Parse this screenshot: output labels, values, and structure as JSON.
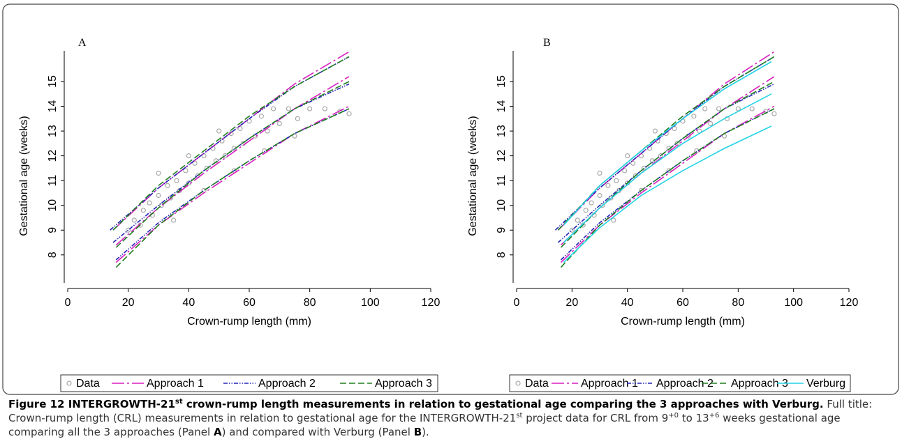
{
  "chart_data": [
    {
      "type": "scatter-line",
      "panel": "A",
      "x_label": "Crown-rump length (mm)",
      "y_label": "Gestational age (weeks)",
      "xlim": [
        0,
        120
      ],
      "xticks": [
        0,
        20,
        40,
        60,
        80,
        100,
        120
      ],
      "ylim": [
        6.7,
        16.8
      ],
      "yticks": [
        8,
        9,
        10,
        11,
        12,
        13,
        14,
        15
      ],
      "series": [
        {
          "name": "Data",
          "color": "#a8a8a8",
          "marker": "circle",
          "x": [
            20,
            22,
            24,
            25,
            27,
            28,
            30,
            31,
            33,
            34,
            36,
            37,
            39,
            40,
            42,
            43,
            45,
            46,
            48,
            49,
            51,
            52,
            54,
            55,
            57,
            58,
            60,
            62,
            64,
            66,
            68,
            70,
            73,
            76,
            80,
            85,
            90,
            93,
            35,
            45,
            55,
            65,
            75,
            30,
            40,
            50
          ],
          "values": [
            9.0,
            9.4,
            9.2,
            9.8,
            10.1,
            9.6,
            10.4,
            10.0,
            10.8,
            10.3,
            11.0,
            10.6,
            11.4,
            10.9,
            11.7,
            11.2,
            12.0,
            11.5,
            12.3,
            11.8,
            12.6,
            12.0,
            12.9,
            12.3,
            13.1,
            12.5,
            13.4,
            12.8,
            13.6,
            13.0,
            13.9,
            13.3,
            13.9,
            13.5,
            13.9,
            13.9,
            13.8,
            13.7,
            9.4,
            10.6,
            11.4,
            12.2,
            12.8,
            11.3,
            12.0,
            13.0
          ]
        },
        {
          "name": "Approach 1",
          "color": "#d81fc0",
          "dash": "18 4 3 4",
          "lines": [
            {
              "x": [
                16,
                30,
                45,
                60,
                75,
                93
              ],
              "values": [
                7.7,
                9.2,
                10.5,
                11.7,
                12.9,
                14.0
              ]
            },
            {
              "x": [
                16,
                30,
                45,
                60,
                75,
                93
              ],
              "values": [
                8.4,
                9.9,
                11.3,
                12.6,
                13.9,
                15.2
              ]
            },
            {
              "x": [
                15,
                30,
                45,
                60,
                75,
                93
              ],
              "values": [
                9.0,
                10.7,
                12.1,
                13.5,
                14.9,
                16.2
              ]
            }
          ]
        },
        {
          "name": "Approach 2",
          "color": "#2424b8",
          "dash": "6 2 1.5 2 1.5 2",
          "lines": [
            {
              "x": [
                16,
                30,
                45,
                60,
                75,
                93
              ],
              "values": [
                7.8,
                9.3,
                10.6,
                11.8,
                12.9,
                13.9
              ]
            },
            {
              "x": [
                15,
                30,
                45,
                60,
                75,
                93
              ],
              "values": [
                8.5,
                10.0,
                11.4,
                12.7,
                13.9,
                14.9
              ]
            },
            {
              "x": [
                14,
                30,
                45,
                60,
                75,
                93
              ],
              "values": [
                9.0,
                10.7,
                12.1,
                13.5,
                14.8,
                16.0
              ]
            }
          ]
        },
        {
          "name": "Approach 3",
          "color": "#1f7f1f",
          "dash": "9 4",
          "lines": [
            {
              "x": [
                16,
                30,
                45,
                60,
                75,
                93
              ],
              "values": [
                7.5,
                9.2,
                10.6,
                11.8,
                12.9,
                13.9
              ]
            },
            {
              "x": [
                16,
                30,
                45,
                60,
                75,
                93
              ],
              "values": [
                8.3,
                9.9,
                11.4,
                12.7,
                13.9,
                15.0
              ]
            },
            {
              "x": [
                15,
                30,
                45,
                60,
                75,
                93
              ],
              "values": [
                9.0,
                10.8,
                12.2,
                13.6,
                14.8,
                16.0
              ]
            }
          ]
        }
      ]
    },
    {
      "type": "scatter-line",
      "panel": "B",
      "x_label": "Crown-rump length (mm)",
      "y_label": "Gestational age (weeks)",
      "xlim": [
        0,
        120
      ],
      "xticks": [
        0,
        20,
        40,
        60,
        80,
        100,
        120
      ],
      "ylim": [
        6.7,
        16.8
      ],
      "yticks": [
        8,
        9,
        10,
        11,
        12,
        13,
        14,
        15
      ],
      "series": [
        {
          "name": "Data",
          "color": "#a8a8a8",
          "marker": "circle",
          "x": [
            20,
            22,
            24,
            25,
            27,
            28,
            30,
            31,
            33,
            34,
            36,
            37,
            39,
            40,
            42,
            43,
            45,
            46,
            48,
            49,
            51,
            52,
            54,
            55,
            57,
            58,
            60,
            62,
            64,
            66,
            68,
            70,
            73,
            76,
            80,
            85,
            90,
            93,
            35,
            45,
            55,
            65,
            75,
            30,
            40,
            50
          ],
          "values": [
            9.0,
            9.4,
            9.2,
            9.8,
            10.1,
            9.6,
            10.4,
            10.0,
            10.8,
            10.3,
            11.0,
            10.6,
            11.4,
            10.9,
            11.7,
            11.2,
            12.0,
            11.5,
            12.3,
            11.8,
            12.6,
            12.0,
            12.9,
            12.3,
            13.1,
            12.5,
            13.4,
            12.8,
            13.6,
            13.0,
            13.9,
            13.3,
            13.9,
            13.5,
            13.9,
            13.9,
            13.8,
            13.7,
            9.4,
            10.6,
            11.4,
            12.2,
            12.8,
            11.3,
            12.0,
            13.0
          ]
        },
        {
          "name": "Approach 1",
          "color": "#d81fc0",
          "dash": "18 4 3 4",
          "lines": [
            {
              "x": [
                16,
                30,
                45,
                60,
                75,
                93
              ],
              "values": [
                7.7,
                9.2,
                10.5,
                11.7,
                12.9,
                14.0
              ]
            },
            {
              "x": [
                16,
                30,
                45,
                60,
                75,
                93
              ],
              "values": [
                8.4,
                9.9,
                11.3,
                12.6,
                13.9,
                15.2
              ]
            },
            {
              "x": [
                15,
                30,
                45,
                60,
                75,
                93
              ],
              "values": [
                9.0,
                10.7,
                12.1,
                13.5,
                14.9,
                16.2
              ]
            }
          ]
        },
        {
          "name": "Approach 2",
          "color": "#2424b8",
          "dash": "6 2 1.5 2 1.5 2",
          "lines": [
            {
              "x": [
                16,
                30,
                45,
                60,
                75,
                93
              ],
              "values": [
                7.8,
                9.3,
                10.6,
                11.8,
                12.9,
                13.9
              ]
            },
            {
              "x": [
                15,
                30,
                45,
                60,
                75,
                93
              ],
              "values": [
                8.5,
                10.0,
                11.4,
                12.7,
                13.9,
                14.9
              ]
            },
            {
              "x": [
                14,
                30,
                45,
                60,
                75,
                93
              ],
              "values": [
                9.0,
                10.7,
                12.1,
                13.5,
                14.8,
                16.0
              ]
            }
          ]
        },
        {
          "name": "Approach 3",
          "color": "#1f7f1f",
          "dash": "9 4",
          "lines": [
            {
              "x": [
                16,
                30,
                45,
                60,
                75,
                93
              ],
              "values": [
                7.5,
                9.2,
                10.6,
                11.8,
                12.9,
                13.9
              ]
            },
            {
              "x": [
                16,
                30,
                45,
                60,
                75,
                93
              ],
              "values": [
                8.3,
                9.9,
                11.4,
                12.7,
                13.9,
                15.0
              ]
            },
            {
              "x": [
                15,
                30,
                45,
                60,
                75,
                93
              ],
              "values": [
                9.0,
                10.8,
                12.2,
                13.6,
                14.8,
                16.0
              ]
            }
          ]
        },
        {
          "name": "Verburg",
          "color": "#22d3e3",
          "dash": "none",
          "lines": [
            {
              "x": [
                17,
                30,
                45,
                60,
                75,
                92
              ],
              "values": [
                7.7,
                9.1,
                10.4,
                11.4,
                12.3,
                13.2
              ]
            },
            {
              "x": [
                17,
                30,
                45,
                60,
                75,
                92
              ],
              "values": [
                8.5,
                9.9,
                11.3,
                12.5,
                13.5,
                14.5
              ]
            },
            {
              "x": [
                17,
                30,
                45,
                60,
                75,
                92
              ],
              "values": [
                9.2,
                10.8,
                12.2,
                13.5,
                14.7,
                15.8
              ]
            }
          ]
        }
      ]
    }
  ],
  "caption": {
    "segments": [
      {
        "text": "Figure 12 INTERGROWTH-21",
        "bold": true
      },
      {
        "text": "st",
        "bold": true,
        "sup": true
      },
      {
        "text": " crown-rump length measurements in relation to gestational age comparing the 3 approaches with Verburg.",
        "bold": true
      },
      {
        "text": " Full title: Crown-rump length (CRL) measurements in relation to gestational age for the INTERGROWTH-21"
      },
      {
        "text": "st",
        "sup": true
      },
      {
        "text": " project data for CRL from 9"
      },
      {
        "text": "+0",
        "sup": true
      },
      {
        "text": " to 13"
      },
      {
        "text": "+6",
        "sup": true
      },
      {
        "text": " weeks gestational age comparing all the 3 approaches (Panel "
      },
      {
        "text": "A",
        "bold": true
      },
      {
        "text": ") and compared with Verburg (Panel "
      },
      {
        "text": "B",
        "bold": true
      },
      {
        "text": ")."
      }
    ]
  }
}
